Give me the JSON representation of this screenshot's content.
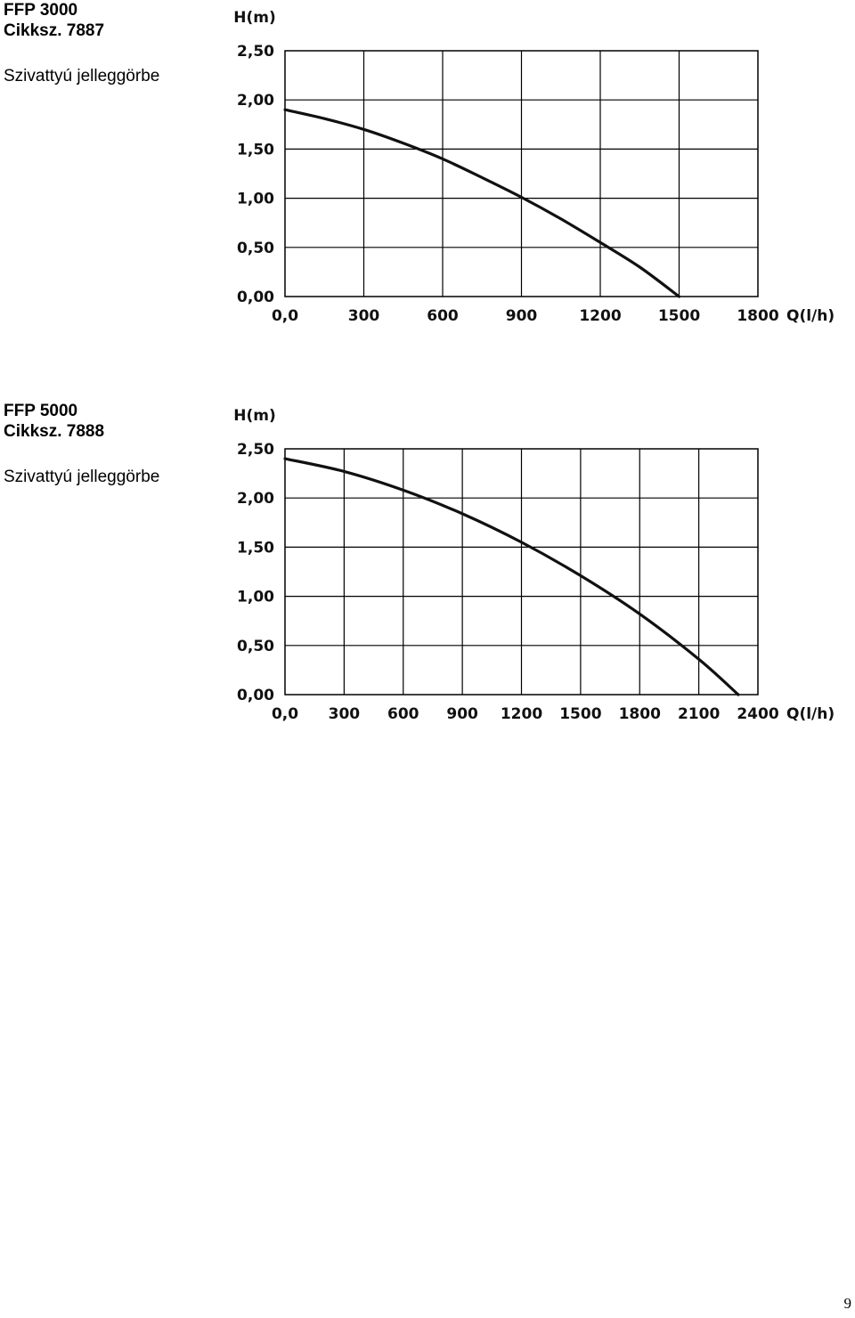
{
  "sections": [
    {
      "model": "FFP 3000",
      "item_no": "Cikksz. 7887",
      "description": "Szivattyú jelleggörbe"
    },
    {
      "model": "FFP 5000",
      "item_no": "Cikksz. 7888",
      "description": "Szivattyú jelleggörbe"
    }
  ],
  "page_number": "9",
  "chart_data": [
    {
      "type": "line",
      "ylabel": "H(m)",
      "xlabel": "Q(l/h)",
      "xlim": [
        0,
        1800
      ],
      "ylim": [
        0,
        2.5
      ],
      "x_ticks": [
        "0,0",
        "300",
        "600",
        "900",
        "1200",
        "1500",
        "1800"
      ],
      "y_ticks": [
        "0,00",
        "0,50",
        "1,00",
        "1,50",
        "2,00",
        "2,50"
      ],
      "grid": true,
      "series": [
        {
          "x": [
            0,
            150,
            300,
            450,
            600,
            750,
            900,
            1050,
            1200,
            1350,
            1500
          ],
          "y": [
            1.9,
            1.81,
            1.7,
            1.56,
            1.4,
            1.21,
            1.01,
            0.79,
            0.55,
            0.3,
            0.0
          ]
        }
      ]
    },
    {
      "type": "line",
      "ylabel": "H(m)",
      "xlabel": "Q(l/h)",
      "xlim": [
        0,
        2400
      ],
      "ylim": [
        0,
        2.5
      ],
      "x_ticks": [
        "0,0",
        "300",
        "600",
        "900",
        "1200",
        "1500",
        "1800",
        "2100",
        "2400"
      ],
      "y_ticks": [
        "0,00",
        "0,50",
        "1,00",
        "1,50",
        "2,00",
        "2,50"
      ],
      "grid": true,
      "series": [
        {
          "x": [
            0,
            300,
            600,
            900,
            1200,
            1500,
            1800,
            2100,
            2300
          ],
          "y": [
            2.4,
            2.27,
            2.08,
            1.84,
            1.55,
            1.21,
            0.82,
            0.36,
            0.0
          ]
        }
      ]
    }
  ]
}
